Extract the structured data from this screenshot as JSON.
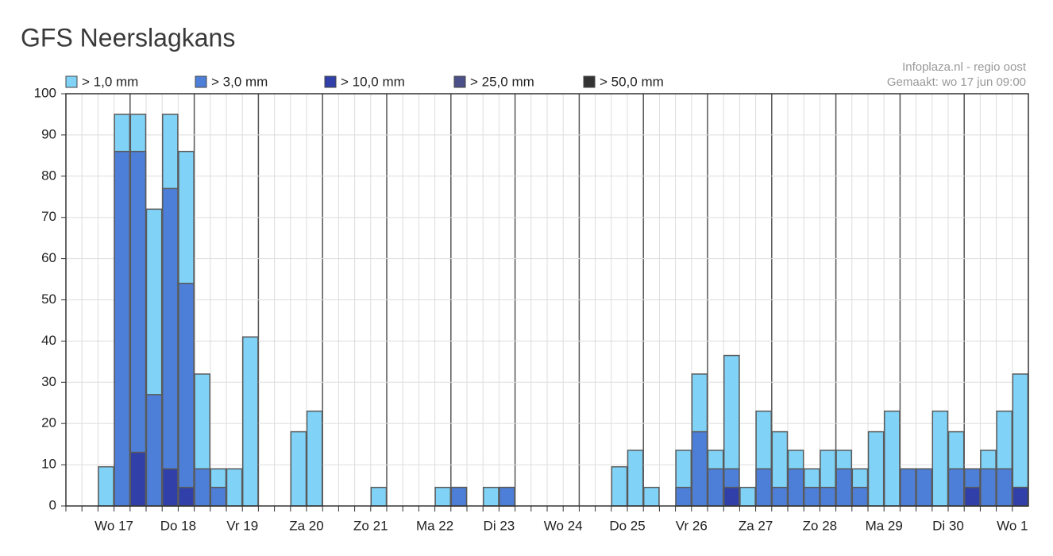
{
  "chart_data": {
    "type": "bar",
    "title": "GFS Neerslagkans",
    "annotations": [
      "Infoplaza.nl - regio oost",
      "Gemaakt: wo 17 jun 09:00"
    ],
    "categories": [
      null,
      null,
      null,
      "Wo 17",
      null,
      null,
      null,
      "Do 18",
      null,
      null,
      null,
      "Vr 19",
      null,
      null,
      null,
      "Za 20",
      null,
      null,
      null,
      "Zo 21",
      null,
      null,
      null,
      "Ma 22",
      null,
      null,
      null,
      "Di 23",
      null,
      null,
      null,
      "Wo 24",
      null,
      null,
      null,
      "Do 25",
      null,
      null,
      null,
      "Vr 26",
      null,
      null,
      null,
      "Za 27",
      null,
      null,
      null,
      "Zo 28",
      null,
      null,
      null,
      "Ma 29",
      null,
      null,
      null,
      "Di 30",
      null,
      null,
      null,
      "Wo 1"
    ],
    "series": [
      {
        "name": "> 1,0 mm",
        "color": "#80d2f6",
        "values": [
          0,
          0,
          9.5,
          95,
          95,
          72,
          95,
          86,
          32,
          9,
          9,
          41,
          0,
          0,
          18,
          23,
          0,
          0,
          0,
          4.5,
          0,
          0,
          0,
          4.5,
          4.5,
          0,
          4.5,
          4.5,
          0,
          0,
          0,
          0,
          0,
          0,
          9.5,
          13.5,
          4.5,
          0,
          13.5,
          32,
          13.5,
          36.5,
          4.5,
          23,
          18,
          13.5,
          9,
          13.5,
          13.5,
          9,
          18,
          23,
          9,
          9,
          23,
          18,
          9,
          13.5,
          23,
          32
        ]
      },
      {
        "name": "> 3,0 mm",
        "color": "#4d7fd8",
        "values": [
          0,
          0,
          0,
          86,
          86,
          27,
          77,
          54,
          9,
          4.5,
          0,
          0,
          0,
          0,
          0,
          0,
          0,
          0,
          0,
          0,
          0,
          0,
          0,
          0,
          4.5,
          0,
          0,
          4.5,
          0,
          0,
          0,
          0,
          0,
          0,
          0,
          0,
          0,
          0,
          4.5,
          18,
          9,
          9,
          0,
          9,
          4.5,
          9,
          4.5,
          4.5,
          9,
          4.5,
          0,
          0,
          9,
          9,
          0,
          9,
          9,
          9,
          9,
          4.5
        ]
      },
      {
        "name": "> 10,0 mm",
        "color": "#3040a8",
        "values": [
          0,
          0,
          0,
          0,
          13,
          0,
          9,
          4.5,
          0,
          0,
          0,
          0,
          0,
          0,
          0,
          0,
          0,
          0,
          0,
          0,
          0,
          0,
          0,
          0,
          0,
          0,
          0,
          0,
          0,
          0,
          0,
          0,
          0,
          0,
          0,
          0,
          0,
          0,
          0,
          0,
          0,
          4.5,
          0,
          0,
          0,
          0,
          0,
          0,
          0,
          0,
          0,
          0,
          0,
          0,
          0,
          0,
          4.5,
          0,
          0,
          4.5
        ]
      },
      {
        "name": "> 25,0 mm",
        "color": "#4b5088",
        "values": [
          0,
          0,
          0,
          0,
          0,
          0,
          0,
          0,
          0,
          0,
          0,
          0,
          0,
          0,
          0,
          0,
          0,
          0,
          0,
          0,
          0,
          0,
          0,
          0,
          0,
          0,
          0,
          0,
          0,
          0,
          0,
          0,
          0,
          0,
          0,
          0,
          0,
          0,
          0,
          0,
          0,
          0,
          0,
          0,
          0,
          0,
          0,
          0,
          0,
          0,
          0,
          0,
          0,
          0,
          0,
          0,
          0,
          0,
          0,
          0
        ]
      },
      {
        "name": "> 50,0 mm",
        "color": "#333333",
        "values": [
          0,
          0,
          0,
          0,
          0,
          0,
          0,
          0,
          0,
          0,
          0,
          0,
          0,
          0,
          0,
          0,
          0,
          0,
          0,
          0,
          0,
          0,
          0,
          0,
          0,
          0,
          0,
          0,
          0,
          0,
          0,
          0,
          0,
          0,
          0,
          0,
          0,
          0,
          0,
          0,
          0,
          0,
          0,
          0,
          0,
          0,
          0,
          0,
          0,
          0,
          0,
          0,
          0,
          0,
          0,
          0,
          0,
          0,
          0,
          0
        ]
      }
    ],
    "ylim": [
      0,
      100
    ],
    "yticks": [
      0,
      10,
      20,
      30,
      40,
      50,
      60,
      70,
      80,
      90,
      100
    ],
    "grid": true
  }
}
